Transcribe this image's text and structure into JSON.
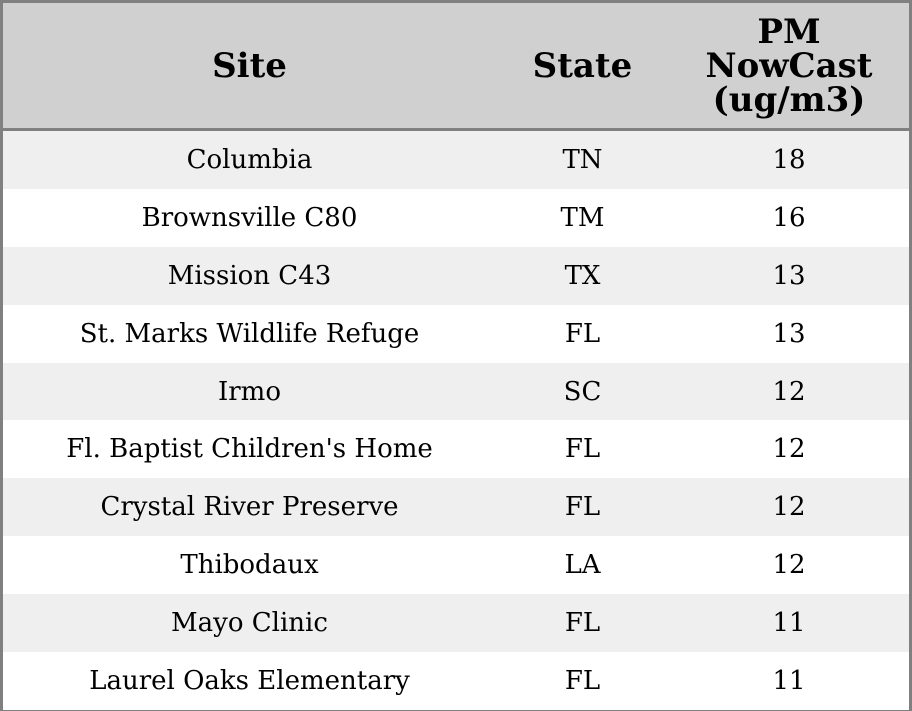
{
  "table": {
    "columns": {
      "site": "Site",
      "state": "State",
      "pm_line1": "PM",
      "pm_line2": "NowCast",
      "pm_line3": "(ug/m3)"
    },
    "rows": [
      {
        "site": "Columbia",
        "state": "TN",
        "pm": "18"
      },
      {
        "site": "Brownsville C80",
        "state": "TM",
        "pm": "16"
      },
      {
        "site": "Mission C43",
        "state": "TX",
        "pm": "13"
      },
      {
        "site": "St. Marks Wildlife Refuge",
        "state": "FL",
        "pm": "13"
      },
      {
        "site": "Irmo",
        "state": "SC",
        "pm": "12"
      },
      {
        "site": "Fl. Baptist Children's Home",
        "state": "FL",
        "pm": "12"
      },
      {
        "site": "Crystal River Preserve",
        "state": "FL",
        "pm": "12"
      },
      {
        "site": "Thibodaux",
        "state": "LA",
        "pm": "12"
      },
      {
        "site": "Mayo Clinic",
        "state": "FL",
        "pm": "11"
      },
      {
        "site": "Laurel Oaks Elementary",
        "state": "FL",
        "pm": "11"
      }
    ]
  },
  "colors": {
    "header_bg": "#d0d0d0",
    "row_alt_bg": "#efefef",
    "row_bg": "#ffffff",
    "border": "#808080"
  }
}
